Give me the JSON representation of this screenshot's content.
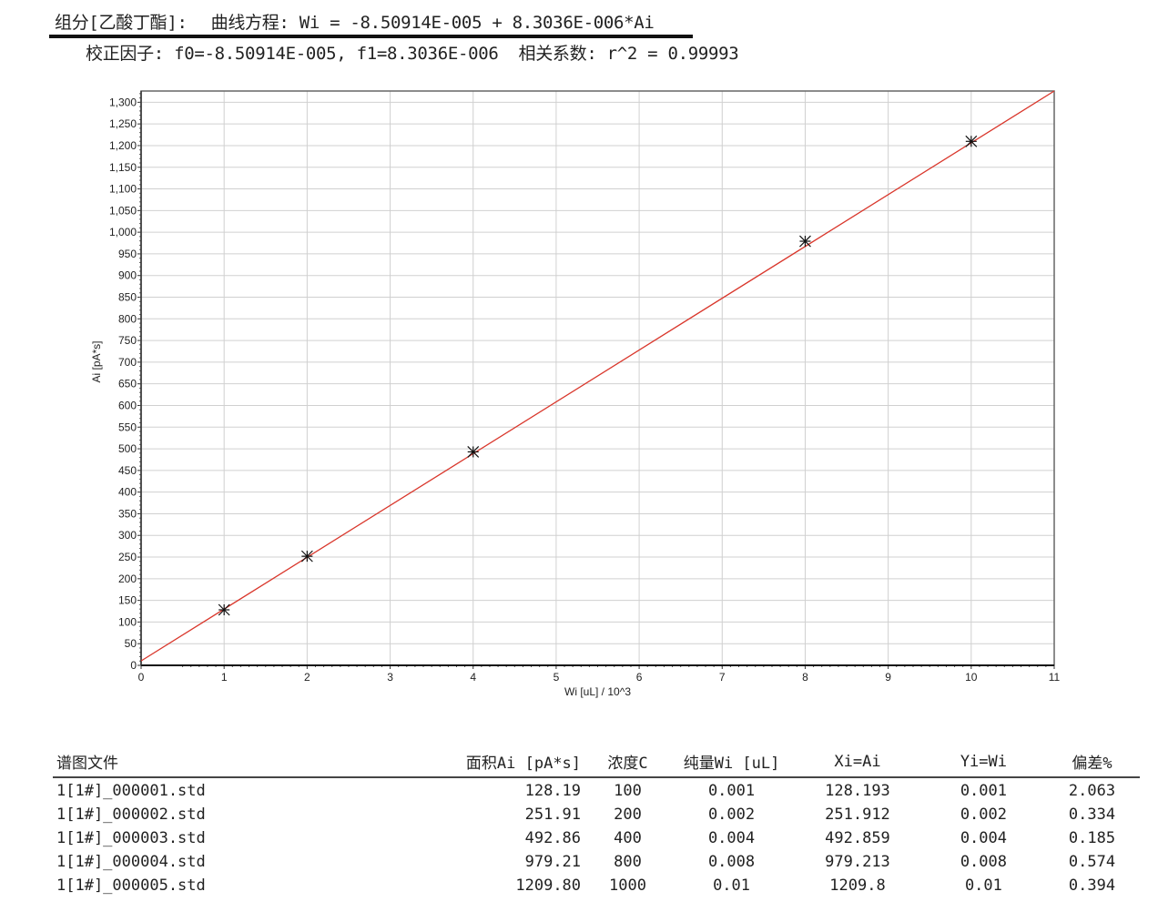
{
  "header": {
    "component": "组分[乙酸丁酯]:",
    "equation": "曲线方程: Wi = -8.50914E-005 + 8.3036E-006*Ai",
    "factors": "校正因子: f0=-8.50914E-005, f1=8.3036E-006",
    "correlation": "相关系数: r^2 = 0.99993"
  },
  "chart_data": {
    "type": "scatter",
    "xlabel": "Wi [uL] / 10^3",
    "ylabel": "Ai [pA*s]",
    "xlim": [
      0,
      11
    ],
    "ylim": [
      0,
      1326
    ],
    "xticks": [
      "0",
      "1",
      "2",
      "3",
      "4",
      "5",
      "6",
      "7",
      "8",
      "9",
      "10",
      "11"
    ],
    "yticks": [
      "0",
      "50",
      "100",
      "150",
      "200",
      "250",
      "300",
      "350",
      "400",
      "450",
      "500",
      "550",
      "600",
      "650",
      "700",
      "750",
      "800",
      "850",
      "900",
      "950",
      "1,000",
      "1,050",
      "1,100",
      "1,150",
      "1,200",
      "1,250",
      "1,300"
    ],
    "grid": true,
    "points": [
      {
        "x": 1,
        "y": 128.19
      },
      {
        "x": 2,
        "y": 251.91
      },
      {
        "x": 4,
        "y": 492.86
      },
      {
        "x": 8,
        "y": 979.21
      },
      {
        "x": 10,
        "y": 1209.8
      }
    ],
    "fit_line": {
      "x": [
        0,
        11
      ],
      "y": [
        10.25,
        1335
      ]
    },
    "colors": {
      "fit": "#d9362b",
      "marker": "#111111",
      "grid": "#d0d0d0"
    }
  },
  "table": {
    "headers": [
      "谱图文件",
      "面积Ai [pA*s]",
      "浓度C",
      "纯量Wi [uL]",
      "Xi=Ai",
      "Yi=Wi",
      "偏差%"
    ],
    "rows": [
      [
        "1[1#]_000001.std",
        "128.19",
        "100",
        "0.001",
        "128.193",
        "0.001",
        "2.063"
      ],
      [
        "1[1#]_000002.std",
        "251.91",
        "200",
        "0.002",
        "251.912",
        "0.002",
        "0.334"
      ],
      [
        "1[1#]_000003.std",
        "492.86",
        "400",
        "0.004",
        "492.859",
        "0.004",
        "0.185"
      ],
      [
        "1[1#]_000004.std",
        "979.21",
        "800",
        "0.008",
        "979.213",
        "0.008",
        "0.574"
      ],
      [
        "1[1#]_000005.std",
        "1209.80",
        "1000",
        "0.01",
        "1209.8",
        "0.01",
        "0.394"
      ]
    ]
  }
}
